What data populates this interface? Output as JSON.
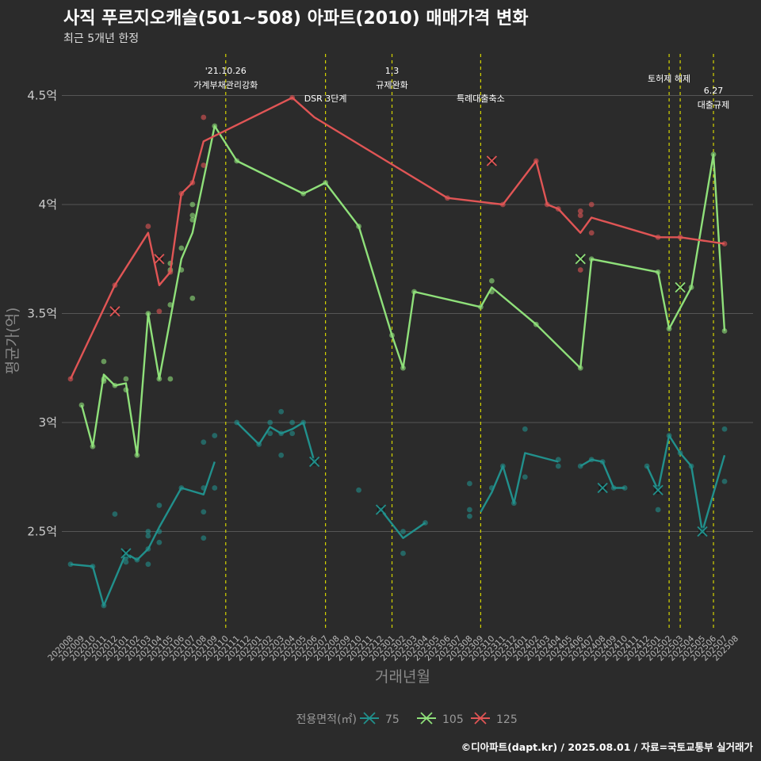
{
  "title": "사직 푸르지오캐슬(501~508) 아파트(2010) 매매가격 변화",
  "subtitle": "최근 5개년 한정",
  "caption": "©디아파트(dapt.kr) / 2025.08.01 / 자료=국토교통부 실거래가",
  "colors": {
    "background": "#2b2b2b",
    "grid": "#555555",
    "vline": "#d4d400",
    "s75": "#21908c",
    "s105": "#8fe07a",
    "s125": "#e05555"
  },
  "chart_data": {
    "type": "line",
    "xlabel": "거래년월",
    "ylabel": "평균가(억)",
    "ylim": [
      2.05,
      4.65
    ],
    "yticks": [
      {
        "value": 2.5,
        "label": "2.5억"
      },
      {
        "value": 3.0,
        "label": "3억"
      },
      {
        "value": 3.5,
        "label": "3.5억"
      },
      {
        "value": 4.0,
        "label": "4억"
      },
      {
        "value": 4.5,
        "label": "4.5억"
      }
    ],
    "x_categories": [
      "202008",
      "202009",
      "202010",
      "202011",
      "202012",
      "202101",
      "202102",
      "202103",
      "202104",
      "202105",
      "202106",
      "202107",
      "202108",
      "202109",
      "202110",
      "202111",
      "202112",
      "202201",
      "202202",
      "202203",
      "202204",
      "202205",
      "202206",
      "202207",
      "202208",
      "202209",
      "202210",
      "202211",
      "202212",
      "202301",
      "202302",
      "202303",
      "202304",
      "202305",
      "202306",
      "202307",
      "202308",
      "202309",
      "202310",
      "202311",
      "202312",
      "202401",
      "202402",
      "202403",
      "202404",
      "202405",
      "202406",
      "202407",
      "202408",
      "202409",
      "202410",
      "202411",
      "202412",
      "202501",
      "202502",
      "202503",
      "202504",
      "202505",
      "202506",
      "202507",
      "202508"
    ],
    "legend_title": "전용면적(㎡)",
    "series": [
      {
        "name": "75",
        "color_key": "s75",
        "line": [
          [
            "202008",
            2.35
          ],
          [
            "202010",
            2.34
          ],
          [
            "202011",
            2.16
          ],
          [
            "202101",
            2.4
          ],
          [
            "202102",
            2.37
          ],
          [
            "202103",
            2.42
          ],
          [
            "202104",
            2.52
          ],
          [
            "202106",
            2.7
          ],
          [
            "202108",
            2.67
          ],
          [
            "202109",
            2.82
          ],
          null,
          [
            "202111",
            3.0
          ],
          [
            "202201",
            2.9
          ],
          [
            "202202",
            2.98
          ],
          [
            "202203",
            2.95
          ],
          [
            "202204",
            2.97
          ],
          [
            "202205",
            3.0
          ],
          [
            "202206",
            2.82
          ],
          null,
          [
            "202212",
            2.6
          ],
          [
            "202302",
            2.47
          ],
          [
            "202304",
            2.54
          ],
          null,
          [
            "202309",
            2.59
          ],
          [
            "202310",
            2.68
          ],
          [
            "202311",
            2.8
          ],
          [
            "202312",
            2.63
          ],
          [
            "202401",
            2.86
          ],
          [
            "202404",
            2.82
          ],
          null,
          [
            "202406",
            2.8
          ],
          [
            "202407",
            2.83
          ],
          [
            "202408",
            2.82
          ],
          [
            "202409",
            2.7
          ],
          [
            "202410",
            2.7
          ],
          null,
          [
            "202412",
            2.8
          ],
          [
            "202501",
            2.69
          ],
          [
            "202502",
            2.94
          ],
          [
            "202503",
            2.86
          ],
          [
            "202504",
            2.8
          ],
          [
            "202505",
            2.5
          ],
          [
            "202507",
            2.85
          ]
        ],
        "points": [
          [
            "202008",
            2.35
          ],
          [
            "202010",
            2.34
          ],
          [
            "202011",
            2.16
          ],
          [
            "202012",
            2.58
          ],
          [
            "202101",
            2.38
          ],
          [
            "202101",
            2.36
          ],
          [
            "202101",
            2.39
          ],
          [
            "202102",
            2.37
          ],
          [
            "202103",
            2.35
          ],
          [
            "202103",
            2.42
          ],
          [
            "202103",
            2.5
          ],
          [
            "202103",
            2.48
          ],
          [
            "202104",
            2.45
          ],
          [
            "202104",
            2.5
          ],
          [
            "202104",
            2.62
          ],
          [
            "202106",
            2.7
          ],
          [
            "202108",
            2.47
          ],
          [
            "202108",
            2.59
          ],
          [
            "202108",
            2.7
          ],
          [
            "202108",
            2.91
          ],
          [
            "202109",
            2.7
          ],
          [
            "202109",
            2.94
          ],
          [
            "202111",
            3.0
          ],
          [
            "202201",
            2.9
          ],
          [
            "202202",
            2.95
          ],
          [
            "202202",
            3.0
          ],
          [
            "202203",
            2.85
          ],
          [
            "202203",
            2.95
          ],
          [
            "202203",
            3.05
          ],
          [
            "202204",
            2.95
          ],
          [
            "202204",
            3.0
          ],
          [
            "202205",
            3.0
          ],
          [
            "202206",
            2.82
          ],
          [
            "202210",
            2.69
          ],
          [
            "202212",
            2.6
          ],
          [
            "202302",
            2.4
          ],
          [
            "202302",
            2.5
          ],
          [
            "202304",
            2.54
          ],
          [
            "202308",
            2.57
          ],
          [
            "202308",
            2.6
          ],
          [
            "202308",
            2.72
          ],
          [
            "202310",
            2.7
          ],
          [
            "202311",
            2.8
          ],
          [
            "202312",
            2.63
          ],
          [
            "202401",
            2.75
          ],
          [
            "202401",
            2.97
          ],
          [
            "202404",
            2.8
          ],
          [
            "202404",
            2.83
          ],
          [
            "202406",
            2.8
          ],
          [
            "202407",
            2.83
          ],
          [
            "202408",
            2.82
          ],
          [
            "202409",
            2.7
          ],
          [
            "202410",
            2.7
          ],
          [
            "202412",
            2.8
          ],
          [
            "202501",
            2.6
          ],
          [
            "202501",
            2.7
          ],
          [
            "202502",
            2.94
          ],
          [
            "202503",
            2.86
          ],
          [
            "202504",
            2.8
          ],
          [
            "202505",
            2.5
          ],
          [
            "202507",
            2.73
          ],
          [
            "202507",
            2.97
          ]
        ],
        "crosses": [
          [
            "202101",
            2.4
          ],
          [
            "202206",
            2.82
          ],
          [
            "202212",
            2.6
          ],
          [
            "202408",
            2.7
          ],
          [
            "202501",
            2.69
          ],
          [
            "202505",
            2.5
          ]
        ]
      },
      {
        "name": "105",
        "color_key": "s105",
        "line": [
          [
            "202009",
            3.08
          ],
          [
            "202010",
            2.89
          ],
          [
            "202011",
            3.22
          ],
          [
            "202012",
            3.17
          ],
          [
            "202101",
            3.18
          ],
          [
            "202102",
            2.85
          ],
          [
            "202103",
            3.5
          ],
          [
            "202104",
            3.2
          ],
          [
            "202106",
            3.75
          ],
          [
            "202107",
            3.87
          ],
          [
            "202109",
            4.36
          ],
          [
            "202111",
            4.2
          ],
          [
            "202205",
            4.05
          ],
          [
            "202207",
            4.1
          ],
          [
            "202210",
            3.9
          ],
          [
            "202301",
            3.4
          ],
          [
            "202302",
            3.25
          ],
          [
            "202303",
            3.6
          ],
          [
            "202309",
            3.53
          ],
          [
            "202310",
            3.62
          ],
          [
            "202402",
            3.45
          ],
          [
            "202406",
            3.25
          ],
          [
            "202407",
            3.75
          ],
          [
            "202501",
            3.69
          ],
          [
            "202502",
            3.43
          ],
          [
            "202504",
            3.62
          ],
          [
            "202506",
            4.23
          ],
          [
            "202507",
            3.42
          ]
        ],
        "points": [
          [
            "202009",
            3.08
          ],
          [
            "202010",
            2.89
          ],
          [
            "202011",
            3.19
          ],
          [
            "202011",
            3.2
          ],
          [
            "202011",
            3.28
          ],
          [
            "202012",
            3.17
          ],
          [
            "202101",
            3.15
          ],
          [
            "202101",
            3.2
          ],
          [
            "202102",
            2.85
          ],
          [
            "202103",
            3.5
          ],
          [
            "202104",
            3.2
          ],
          [
            "202105",
            3.2
          ],
          [
            "202105",
            3.54
          ],
          [
            "202105",
            3.7
          ],
          [
            "202105",
            3.73
          ],
          [
            "202106",
            3.7
          ],
          [
            "202106",
            3.8
          ],
          [
            "202107",
            3.57
          ],
          [
            "202107",
            3.93
          ],
          [
            "202107",
            3.95
          ],
          [
            "202107",
            4.0
          ],
          [
            "202109",
            4.36
          ],
          [
            "202111",
            4.2
          ],
          [
            "202205",
            4.05
          ],
          [
            "202207",
            4.1
          ],
          [
            "202210",
            3.9
          ],
          [
            "202301",
            3.4
          ],
          [
            "202302",
            3.25
          ],
          [
            "202303",
            3.6
          ],
          [
            "202309",
            3.53
          ],
          [
            "202310",
            3.6
          ],
          [
            "202310",
            3.65
          ],
          [
            "202402",
            3.45
          ],
          [
            "202406",
            3.25
          ],
          [
            "202407",
            3.75
          ],
          [
            "202501",
            3.69
          ],
          [
            "202502",
            3.43
          ],
          [
            "202504",
            3.62
          ],
          [
            "202506",
            4.23
          ],
          [
            "202507",
            3.42
          ]
        ],
        "crosses": [
          [
            "202406",
            3.75
          ],
          [
            "202503",
            3.62
          ]
        ]
      },
      {
        "name": "125",
        "color_key": "s125",
        "line": [
          [
            "202008",
            3.2
          ],
          [
            "202012",
            3.63
          ],
          [
            "202103",
            3.87
          ],
          [
            "202104",
            3.63
          ],
          [
            "202105",
            3.69
          ],
          [
            "202106",
            4.05
          ],
          [
            "202107",
            4.1
          ],
          [
            "202108",
            4.29
          ],
          [
            "202204",
            4.49
          ],
          [
            "202206",
            4.4
          ],
          [
            "202306",
            4.03
          ],
          [
            "202311",
            4.0
          ],
          [
            "202402",
            4.2
          ],
          [
            "202403",
            4.0
          ],
          [
            "202404",
            3.98
          ],
          [
            "202406",
            3.87
          ],
          [
            "202407",
            3.94
          ],
          [
            "202501",
            3.85
          ],
          [
            "202503",
            3.85
          ],
          [
            "202507",
            3.82
          ]
        ],
        "points": [
          [
            "202008",
            3.2
          ],
          [
            "202012",
            3.63
          ],
          [
            "202103",
            3.9
          ],
          [
            "202104",
            3.51
          ],
          [
            "202105",
            3.69
          ],
          [
            "202106",
            4.05
          ],
          [
            "202107",
            4.1
          ],
          [
            "202108",
            4.18
          ],
          [
            "202108",
            4.4
          ],
          [
            "202204",
            4.49
          ],
          [
            "202306",
            4.03
          ],
          [
            "202311",
            4.0
          ],
          [
            "202402",
            4.2
          ],
          [
            "202403",
            4.0
          ],
          [
            "202404",
            3.98
          ],
          [
            "202406",
            3.7
          ],
          [
            "202406",
            3.95
          ],
          [
            "202406",
            3.97
          ],
          [
            "202407",
            3.87
          ],
          [
            "202407",
            4.0
          ],
          [
            "202501",
            3.85
          ],
          [
            "202503",
            3.85
          ],
          [
            "202507",
            3.82
          ]
        ],
        "crosses": [
          [
            "202012",
            3.51
          ],
          [
            "202104",
            3.75
          ],
          [
            "202310",
            4.2
          ]
        ]
      }
    ],
    "events": [
      {
        "x": "202110",
        "label": "'21.10.26\n가계부채관리강화",
        "pos": "high"
      },
      {
        "x": "202207",
        "label": "DSR 3단계",
        "pos": "low"
      },
      {
        "x": "202301",
        "label": "1.3\n규제완화",
        "pos": "high"
      },
      {
        "x": "202309",
        "label": "특례대출축소",
        "pos": "low"
      },
      {
        "x": "202502",
        "label": "토허제 해제",
        "pos": "mid"
      },
      {
        "x": "202503",
        "label": "",
        "pos": "none"
      },
      {
        "x": "202506",
        "label": "6.27\n대출규제",
        "pos": "low2"
      }
    ]
  }
}
